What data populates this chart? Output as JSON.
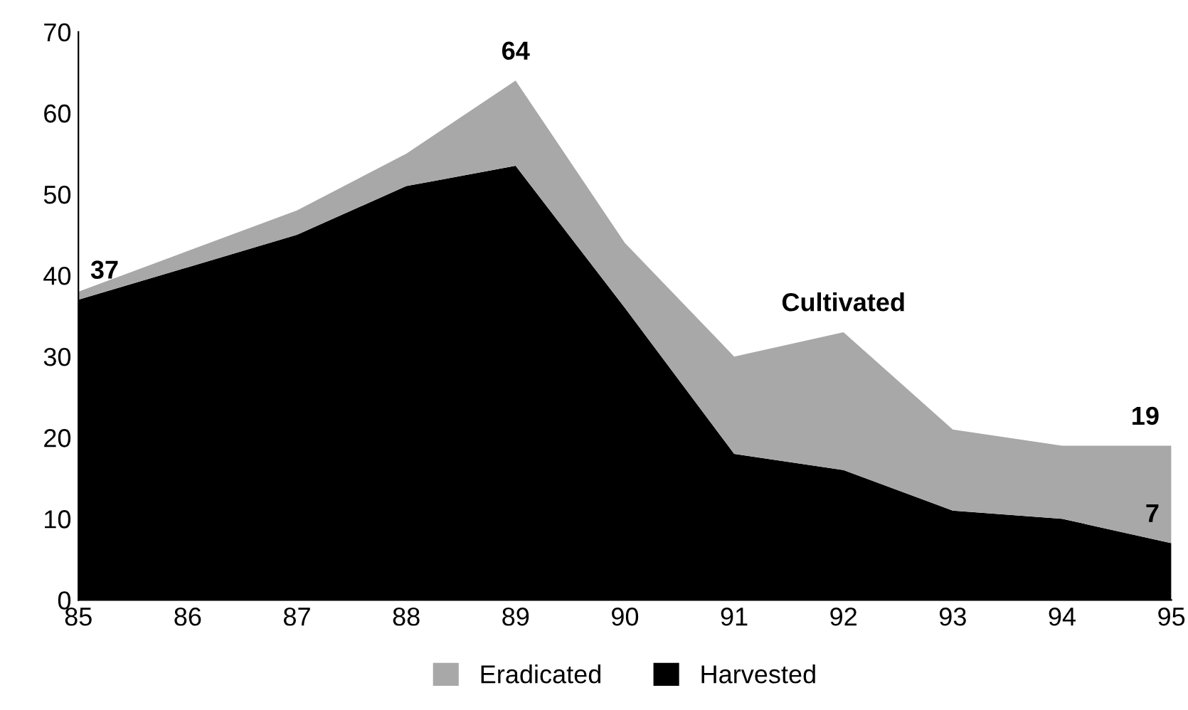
{
  "chart_data": {
    "type": "area",
    "stacked": true,
    "x": [
      85,
      86,
      87,
      88,
      89,
      90,
      91,
      92,
      93,
      94,
      95
    ],
    "series": [
      {
        "name": "Harvested",
        "color": "#000000",
        "values": [
          37,
          41,
          45,
          51,
          53.5,
          36,
          18,
          16,
          11,
          10,
          7
        ]
      },
      {
        "name": "Eradicated",
        "color": "#a8a8a8",
        "values": [
          1,
          2,
          3,
          4,
          10.5,
          8,
          12,
          17,
          10,
          9,
          12
        ]
      }
    ],
    "xlim": [
      85,
      95
    ],
    "xticks": [
      {
        "value": 85,
        "label": "85"
      },
      {
        "value": 86,
        "label": "86"
      },
      {
        "value": 87,
        "label": "87"
      },
      {
        "value": 88,
        "label": "88"
      },
      {
        "value": 89,
        "label": "89"
      },
      {
        "value": 90,
        "label": "90"
      },
      {
        "value": 91,
        "label": "91"
      },
      {
        "value": 92,
        "label": "92"
      },
      {
        "value": 93,
        "label": "93"
      },
      {
        "value": 94,
        "label": "94"
      },
      {
        "value": 95,
        "label": "95"
      }
    ],
    "ylim": [
      0,
      70
    ],
    "yticks": [
      0,
      10,
      20,
      30,
      40,
      50,
      60,
      70
    ],
    "annotations": [
      {
        "text": "37",
        "x": 85,
        "y": 37
      },
      {
        "text": "64",
        "x": 89,
        "y": 64
      },
      {
        "text": "Cultivated",
        "x": 92,
        "y": 33
      },
      {
        "text": "19",
        "x": 95,
        "y": 19
      },
      {
        "text": "7",
        "x": 95,
        "y": 7
      }
    ],
    "legend": "bottom",
    "grid": false
  }
}
